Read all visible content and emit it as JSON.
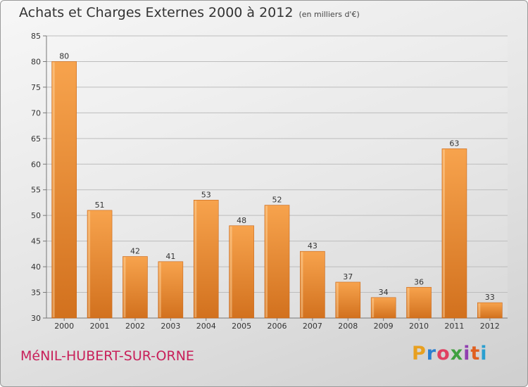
{
  "header": {
    "title": "Achats et Charges Externes 2000 à 2012",
    "subtitle": "(en milliers d'€)"
  },
  "footer": {
    "commune": "MéNIL-HUBERT-SUR-ORNE",
    "logo": "Proxiti"
  },
  "colors": {
    "bar_light": "#f7a34d",
    "bar_dark": "#d2711e",
    "commune": "#c8205a"
  },
  "chart_data": {
    "type": "bar",
    "title": "Achats et Charges Externes 2000 à 2012",
    "subtitle": "(en milliers d'€)",
    "categories": [
      "2000",
      "2001",
      "2002",
      "2003",
      "2004",
      "2005",
      "2006",
      "2007",
      "2008",
      "2009",
      "2010",
      "2011",
      "2012"
    ],
    "values": [
      80,
      51,
      42,
      41,
      53,
      48,
      52,
      43,
      37,
      34,
      36,
      63,
      33
    ],
    "ylim": [
      30,
      85
    ],
    "yticks": [
      30,
      35,
      40,
      45,
      50,
      55,
      60,
      65,
      70,
      75,
      80,
      85
    ],
    "grid": true,
    "data_labels": true
  }
}
